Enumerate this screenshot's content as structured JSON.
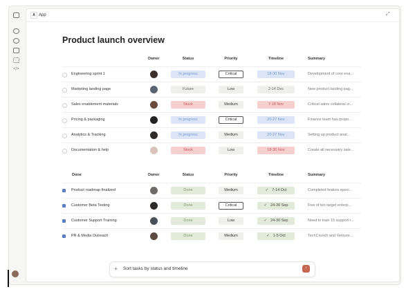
{
  "app": {
    "icon": "A",
    "name": "App"
  },
  "title": "Product launch overview",
  "tables": [
    {
      "checked": false,
      "headers": [
        "Owner",
        "Status",
        "Priority",
        "Timeline",
        "Summary"
      ],
      "rows": [
        {
          "task": "Engineering sprint 1",
          "status": "In progress",
          "priority": "Critical",
          "outlined": true,
          "timeline": "18-30 Nov",
          "summary": "Development of core ena...",
          "color": "#dbe5f7",
          "text_color": "#7b97c9",
          "avatar": "#3b2f2c"
        },
        {
          "task": "Marketing landing page",
          "status": "Future",
          "priority": "Low",
          "outlined": false,
          "timeline": "2-14 Dec",
          "summary": "New product landing pag...",
          "color": "#efefec",
          "text_color": "#666666",
          "avatar": "#5a6470"
        },
        {
          "task": "Sales enablement materials",
          "status": "Stuck",
          "priority": "Medium",
          "outlined": false,
          "timeline": "7-18 Nov",
          "summary": "Critical sales collateral cr...",
          "color": "#f6cfcf",
          "text_color": "#c25757",
          "avatar": "#6b4a3e"
        },
        {
          "task": "Pricing & packaging",
          "status": "In progress",
          "priority": "Critical",
          "outlined": true,
          "timeline": "20-27 Nov",
          "summary": "Finance team has propo...",
          "color": "#dbe5f7",
          "text_color": "#7b97c9",
          "avatar": "#222222"
        },
        {
          "task": "Analytics & Tracking",
          "status": "In progress",
          "priority": "Medium",
          "outlined": false,
          "timeline": "20-27 Nov",
          "summary": "Setting up product anal...",
          "color": "#dbe5f7",
          "text_color": "#7b97c9",
          "avatar": "#2e2a28"
        },
        {
          "task": "Documentation & help",
          "status": "Stuck",
          "priority": "Low",
          "outlined": false,
          "timeline": "18-30 Nov",
          "summary": "Create all necessary sale...",
          "color": "#f6cfcf",
          "text_color": "#c25757",
          "avatar": "#d9c4bb"
        }
      ]
    },
    {
      "checked": true,
      "headers": [
        "Done",
        "Owner",
        "Status",
        "Priority",
        "Timeline",
        "Summary"
      ],
      "rows": [
        {
          "task": "Product roadmap finalized",
          "status": "Done",
          "priority": "Medium",
          "outlined": false,
          "timeline": "7-14 Oct",
          "summary": "Completed feature speci...",
          "color": "#e2ebd9",
          "text_color": "#7b9a6b",
          "avatar": "#6f6a66"
        },
        {
          "task": "Customer Beta Testing",
          "status": "Done",
          "priority": "Critical",
          "outlined": true,
          "timeline": "24-30 Sep",
          "summary": "Five of ten target enterp...",
          "color": "#e2ebd9",
          "text_color": "#7b9a6b",
          "avatar": "#2e2a28"
        },
        {
          "task": "Customer Support Training",
          "status": "Done",
          "priority": "Low",
          "outlined": false,
          "timeline": "24-30 Sep",
          "summary": "Need to train 15 support r...",
          "color": "#e2ebd9",
          "text_color": "#7b9a6b",
          "avatar": "#4a4f55"
        },
        {
          "task": "PR & Media Outreach",
          "status": "Done",
          "priority": "Medium",
          "outlined": false,
          "timeline": "1-5 Oct",
          "summary": "TechCrunch and Venture...",
          "color": "#e2ebd9",
          "text_color": "#7b9a6b",
          "avatar": "#5b4a40"
        }
      ]
    }
  ],
  "input": {
    "text": "Sort tasks by status and timeline"
  }
}
